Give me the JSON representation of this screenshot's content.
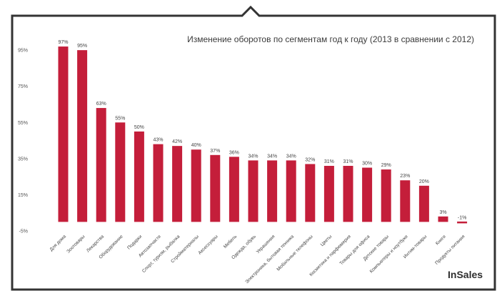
{
  "brand": {
    "logo_text": "InSales",
    "bar_color": "#c41e3a",
    "frame_color": "#333333"
  },
  "chart_data": {
    "type": "bar",
    "title": "Изменение оборотов по сегментам год к году (2013 в сравнении с 2012)",
    "xlabel": "",
    "ylabel": "",
    "ylim": [
      -5,
      100
    ],
    "yticks": [
      -5,
      15,
      35,
      55,
      75,
      95
    ],
    "ytick_labels": [
      "-5%",
      "15%",
      "35%",
      "55%",
      "75%",
      "95%"
    ],
    "grid": false,
    "categories": [
      "Для дома",
      "Зоотовары",
      "Лекарства",
      "Оборудование",
      "Подарки",
      "Автозапчасти",
      "Спорт, туризм, рыбалка",
      "Стройматериалы",
      "Аксессуары",
      "Мебель",
      "Одежда, обувь",
      "Украшения",
      "Электроника, бытовая техника",
      "Мобильные телефоны",
      "Цветы",
      "Косметика и парфюмерия",
      "Товары для офиса",
      "Детские товары",
      "Компьютеры и ноутбуки",
      "Интим-товары",
      "Книги",
      "Продукты питания"
    ],
    "values": [
      97,
      95,
      63,
      55,
      50,
      43,
      42,
      40,
      37,
      36,
      34,
      34,
      34,
      32,
      31,
      31,
      30,
      29,
      23,
      20,
      3,
      -1
    ],
    "data_labels": [
      "97%",
      "95%",
      "63%",
      "55%",
      "50%",
      "43%",
      "42%",
      "40%",
      "37%",
      "36%",
      "34%",
      "34%",
      "34%",
      "32%",
      "31%",
      "31%",
      "30%",
      "29%",
      "23%",
      "20%",
      "3%",
      "-1%"
    ]
  }
}
